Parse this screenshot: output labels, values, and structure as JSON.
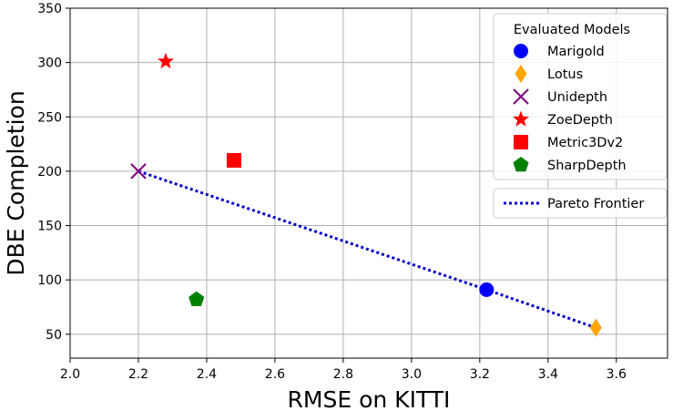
{
  "chart_data": {
    "type": "scatter",
    "title": "",
    "xlabel": "RMSE on KITTI",
    "ylabel": "DBE Completion",
    "xlim": [
      2.0,
      3.75
    ],
    "ylim": [
      28,
      350
    ],
    "xticks": [
      2.0,
      2.2,
      2.4,
      2.6,
      2.8,
      3.0,
      3.2,
      3.4,
      3.6
    ],
    "xtick_labels": [
      "2.0",
      "2.2",
      "2.4",
      "2.6",
      "2.8",
      "3.0",
      "3.2",
      "3.4",
      "3.6"
    ],
    "yticks": [
      50,
      100,
      150,
      200,
      250,
      300,
      350
    ],
    "ytick_labels": [
      "50",
      "100",
      "150",
      "200",
      "250",
      "300",
      "350"
    ],
    "grid": true,
    "points": [
      {
        "name": "Marigold",
        "x": 3.22,
        "y": 91,
        "marker": "circle",
        "color": "#0000ff"
      },
      {
        "name": "Lotus",
        "x": 3.54,
        "y": 56,
        "marker": "diamond",
        "color": "#ffa500"
      },
      {
        "name": "Unidepth",
        "x": 2.2,
        "y": 200,
        "marker": "x",
        "color": "#800080"
      },
      {
        "name": "ZoeDepth",
        "x": 2.28,
        "y": 301,
        "marker": "star",
        "color": "#ff0000"
      },
      {
        "name": "Metric3Dv2",
        "x": 2.48,
        "y": 210,
        "marker": "square",
        "color": "#ff0000"
      },
      {
        "name": "SharpDepth",
        "x": 2.37,
        "y": 82,
        "marker": "pentagon",
        "color": "#008000"
      }
    ],
    "pareto_frontier": {
      "label": "Pareto Frontier",
      "color": "#0000cd",
      "x": [
        2.2,
        3.22,
        3.54
      ],
      "y": [
        200,
        91,
        56
      ]
    },
    "legend": {
      "title": "Evaluated Models",
      "position": "top-right"
    }
  }
}
